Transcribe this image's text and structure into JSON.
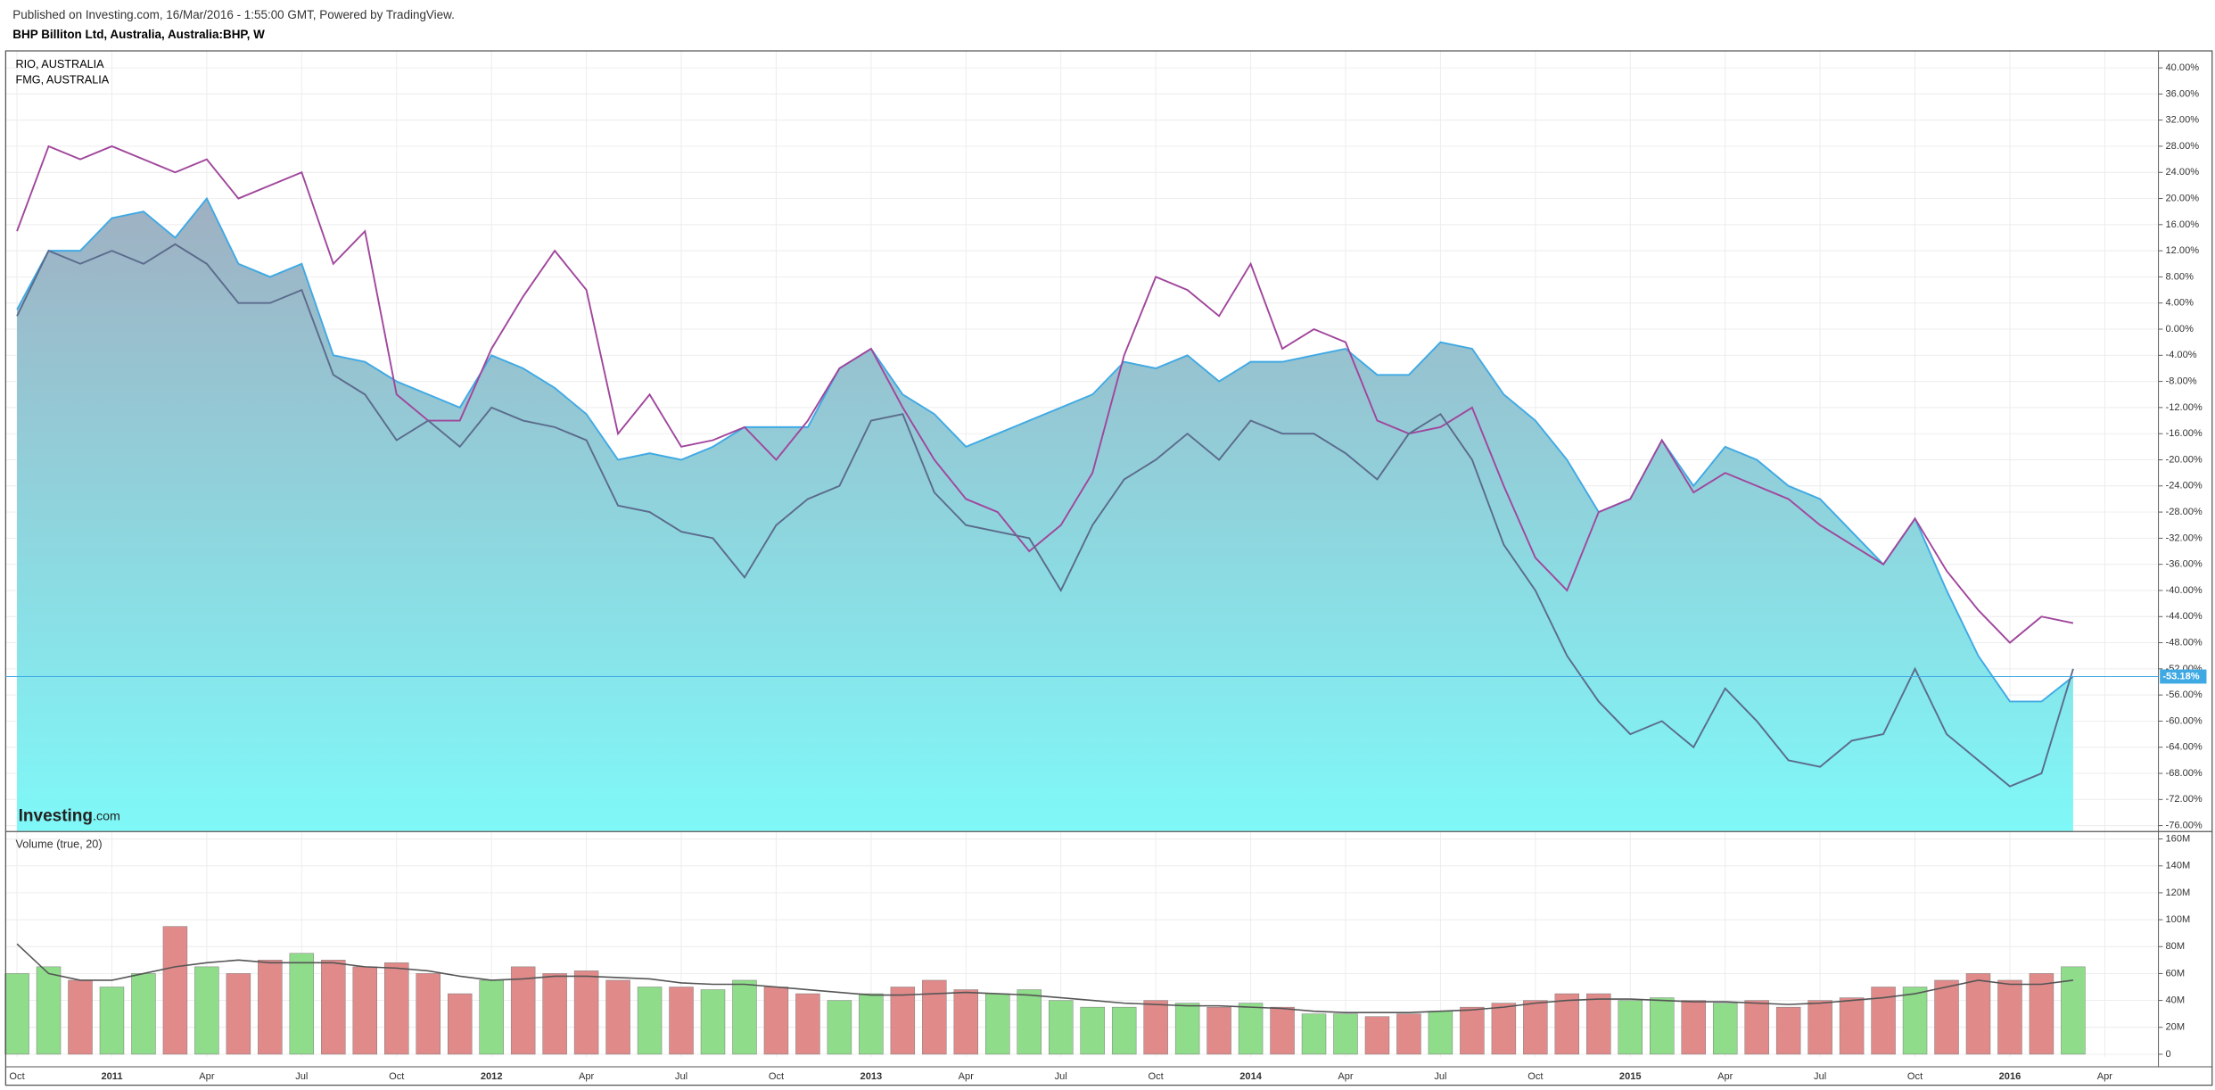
{
  "header": {
    "published": "Published on Investing.com, 16/Mar/2016 - 1:55:00 GMT, Powered by TradingView.",
    "symbol": "BHP Billiton Ltd, Australia, Australia:BHP, W"
  },
  "watermark": {
    "brand": "Investing",
    "suffix": ".com"
  },
  "chart_data": [
    {
      "type": "line",
      "categories": [
        "Oct",
        null,
        null,
        "2011",
        null,
        null,
        "Apr",
        null,
        null,
        "Jul",
        null,
        null,
        "Oct",
        null,
        null,
        "2012",
        null,
        null,
        "Apr",
        null,
        null,
        "Jul",
        null,
        null,
        "Oct",
        null,
        null,
        "2013",
        null,
        null,
        "Apr",
        null,
        null,
        "Jul",
        null,
        null,
        "Oct",
        null,
        null,
        "2014",
        null,
        null,
        "Apr",
        null,
        null,
        "Jul",
        null,
        null,
        "Oct",
        null,
        null,
        "2015",
        null,
        null,
        "Apr",
        null,
        null,
        "Jul",
        null,
        null,
        "Oct",
        null,
        null,
        "2016",
        null,
        null,
        "Apr"
      ],
      "series": [
        {
          "color": "#3fa9e4",
          "area": true,
          "values": [
            3,
            12,
            12,
            17,
            18,
            14,
            20,
            10,
            8,
            10,
            -4,
            -5,
            -8,
            -10,
            -12,
            -4,
            -6,
            -9,
            -13,
            -20,
            -19,
            -20,
            -18,
            -15,
            -15,
            -15,
            -6,
            -3,
            -10,
            -13,
            -18,
            -16,
            -14,
            -12,
            -10,
            -5,
            -6,
            -4,
            -8,
            -5,
            -5,
            -4,
            -3,
            -7,
            -7,
            -2,
            -3,
            -10,
            -14,
            -20,
            -28,
            -26,
            -17,
            -24,
            -18,
            -20,
            -24,
            -26,
            -31,
            -36,
            -29,
            -40,
            -50,
            -57,
            -57,
            -53.18,
            null
          ]
        },
        {
          "name": "RIO, AUSTRALIA",
          "color": "#a0469c",
          "values": [
            15,
            28,
            26,
            28,
            26,
            24,
            26,
            20,
            22,
            24,
            10,
            15,
            -10,
            -14,
            -14,
            -3,
            5,
            12,
            6,
            -16,
            -10,
            -18,
            -17,
            -15,
            -20,
            -14,
            -6,
            -3,
            -12,
            -20,
            -26,
            -28,
            -34,
            -30,
            -22,
            -4,
            8,
            6,
            2,
            10,
            -3,
            0,
            -2,
            -14,
            -16,
            -15,
            -12,
            -24,
            -35,
            -40,
            -28,
            -26,
            -17,
            -25,
            -22,
            -24,
            -26,
            -30,
            -33,
            -36,
            -29,
            -37,
            -43,
            -48,
            -44,
            -45,
            null
          ]
        },
        {
          "name": "FMG, AUSTRALIA",
          "color": "#5b6b8c",
          "values": [
            2,
            12,
            10,
            12,
            10,
            13,
            10,
            4,
            4,
            6,
            -7,
            -10,
            -17,
            -14,
            -18,
            -12,
            -14,
            -15,
            -17,
            -27,
            -28,
            -31,
            -32,
            -38,
            -30,
            -26,
            -24,
            -14,
            -13,
            -25,
            -30,
            -31,
            -32,
            -40,
            -30,
            -23,
            -20,
            -16,
            -20,
            -14,
            -16,
            -16,
            -19,
            -23,
            -16,
            -13,
            -20,
            -33,
            -40,
            -50,
            -57,
            -62,
            -60,
            -64,
            -55,
            -60,
            -66,
            -67,
            -63,
            -62,
            -52,
            -62,
            -66,
            -70,
            -68,
            -52,
            null
          ]
        }
      ],
      "last_value_label": "-53.18%",
      "ylim": [
        -76.8,
        42.6
      ],
      "yticks": [
        {
          "value": 40,
          "label": "40.00%"
        },
        {
          "value": 36,
          "label": "36.00%"
        },
        {
          "value": 32,
          "label": "32.00%"
        },
        {
          "value": 28,
          "label": "28.00%"
        },
        {
          "value": 24,
          "label": "24.00%"
        },
        {
          "value": 20,
          "label": "20.00%"
        },
        {
          "value": 16,
          "label": "16.00%"
        },
        {
          "value": 12,
          "label": "12.00%"
        },
        {
          "value": 8,
          "label": "8.00%"
        },
        {
          "value": 4,
          "label": "4.00%"
        },
        {
          "value": 0,
          "label": "0.00%"
        },
        {
          "value": -4,
          "label": "-4.00%"
        },
        {
          "value": -8,
          "label": "-8.00%"
        },
        {
          "value": -12,
          "label": "-12.00%"
        },
        {
          "value": -16,
          "label": "-16.00%"
        },
        {
          "value": -20,
          "label": "-20.00%"
        },
        {
          "value": -24,
          "label": "-24.00%"
        },
        {
          "value": -28,
          "label": "-28.00%"
        },
        {
          "value": -32,
          "label": "-32.00%"
        },
        {
          "value": -36,
          "label": "-36.00%"
        },
        {
          "value": -40,
          "label": "-40.00%"
        },
        {
          "value": -44,
          "label": "-44.00%"
        },
        {
          "value": -48,
          "label": "-48.00%"
        },
        {
          "value": -52,
          "label": "-52.00%"
        },
        {
          "value": -56,
          "label": "-56.00%"
        },
        {
          "value": -60,
          "label": "-60.00%"
        },
        {
          "value": -64,
          "label": "-64.00%"
        },
        {
          "value": -68,
          "label": "-68.00%"
        },
        {
          "value": -72,
          "label": "-72.00%"
        },
        {
          "value": -76,
          "label": "-76.00%"
        }
      ],
      "grid": true
    },
    {
      "type": "bar",
      "title": "Volume (true, 20)",
      "values": [
        60000000,
        65000000,
        55000000,
        50000000,
        60000000,
        95000000,
        65000000,
        60000000,
        70000000,
        75000000,
        70000000,
        65000000,
        68000000,
        60000000,
        45000000,
        55000000,
        65000000,
        60000000,
        62000000,
        55000000,
        50000000,
        50000000,
        48000000,
        55000000,
        50000000,
        45000000,
        40000000,
        45000000,
        50000000,
        55000000,
        48000000,
        45000000,
        48000000,
        40000000,
        35000000,
        35000000,
        40000000,
        38000000,
        35000000,
        38000000,
        35000000,
        30000000,
        30000000,
        28000000,
        30000000,
        32000000,
        35000000,
        38000000,
        40000000,
        45000000,
        45000000,
        40000000,
        42000000,
        40000000,
        38000000,
        40000000,
        35000000,
        40000000,
        42000000,
        50000000,
        50000000,
        55000000,
        60000000,
        55000000,
        60000000,
        65000000,
        null
      ],
      "colors": [
        "#8fdc8b",
        "#8fdc8b",
        "#e08a8a",
        "#8fdc8b",
        "#8fdc8b",
        "#e08a8a",
        "#8fdc8b",
        "#e08a8a",
        "#e08a8a",
        "#8fdc8b",
        "#e08a8a",
        "#e08a8a",
        "#e08a8a",
        "#e08a8a",
        "#e08a8a",
        "#8fdc8b",
        "#e08a8a",
        "#e08a8a",
        "#e08a8a",
        "#e08a8a",
        "#8fdc8b",
        "#e08a8a",
        "#8fdc8b",
        "#8fdc8b",
        "#e08a8a",
        "#e08a8a",
        "#8fdc8b",
        "#8fdc8b",
        "#e08a8a",
        "#e08a8a",
        "#e08a8a",
        "#8fdc8b",
        "#8fdc8b",
        "#8fdc8b",
        "#8fdc8b",
        "#8fdc8b",
        "#e08a8a",
        "#8fdc8b",
        "#e08a8a",
        "#8fdc8b",
        "#e08a8a",
        "#8fdc8b",
        "#8fdc8b",
        "#e08a8a",
        "#e08a8a",
        "#8fdc8b",
        "#e08a8a",
        "#e08a8a",
        "#e08a8a",
        "#e08a8a",
        "#e08a8a",
        "#8fdc8b",
        "#8fdc8b",
        "#e08a8a",
        "#8fdc8b",
        "#e08a8a",
        "#e08a8a",
        "#e08a8a",
        "#e08a8a",
        "#e08a8a",
        "#8fdc8b",
        "#e08a8a",
        "#e08a8a",
        "#e08a8a",
        "#e08a8a",
        "#8fdc8b",
        null
      ],
      "ma_color": "#555555",
      "ma_values": [
        82000000,
        60000000,
        55000000,
        55000000,
        60000000,
        65000000,
        68000000,
        70000000,
        68000000,
        68000000,
        68000000,
        65000000,
        64000000,
        62000000,
        58000000,
        55000000,
        56000000,
        58000000,
        58000000,
        57000000,
        56000000,
        53000000,
        52000000,
        52000000,
        50000000,
        48000000,
        46000000,
        44000000,
        44000000,
        45000000,
        46000000,
        45000000,
        44000000,
        42000000,
        40000000,
        38000000,
        37000000,
        36000000,
        36000000,
        35000000,
        34000000,
        32000000,
        31000000,
        31000000,
        31000000,
        32000000,
        33000000,
        35000000,
        38000000,
        40000000,
        41000000,
        41000000,
        40000000,
        39000000,
        39000000,
        38000000,
        37000000,
        38000000,
        40000000,
        42000000,
        45000000,
        50000000,
        55000000,
        52000000,
        52000000,
        55000000,
        null
      ],
      "ylim": [
        -2000000,
        165000000
      ],
      "yticks": [
        0,
        {
          "value": 20000000,
          "label": "20M"
        },
        {
          "value": 40000000,
          "label": "40M"
        },
        {
          "value": 60000000,
          "label": "60M"
        },
        {
          "value": 80000000,
          "label": "80M"
        },
        {
          "value": 100000000,
          "label": "100M"
        },
        {
          "value": 120000000,
          "label": "120M"
        },
        {
          "value": 140000000,
          "label": "140M"
        },
        {
          "value": 160000000,
          "label": "160M"
        }
      ],
      "grid": true
    }
  ]
}
